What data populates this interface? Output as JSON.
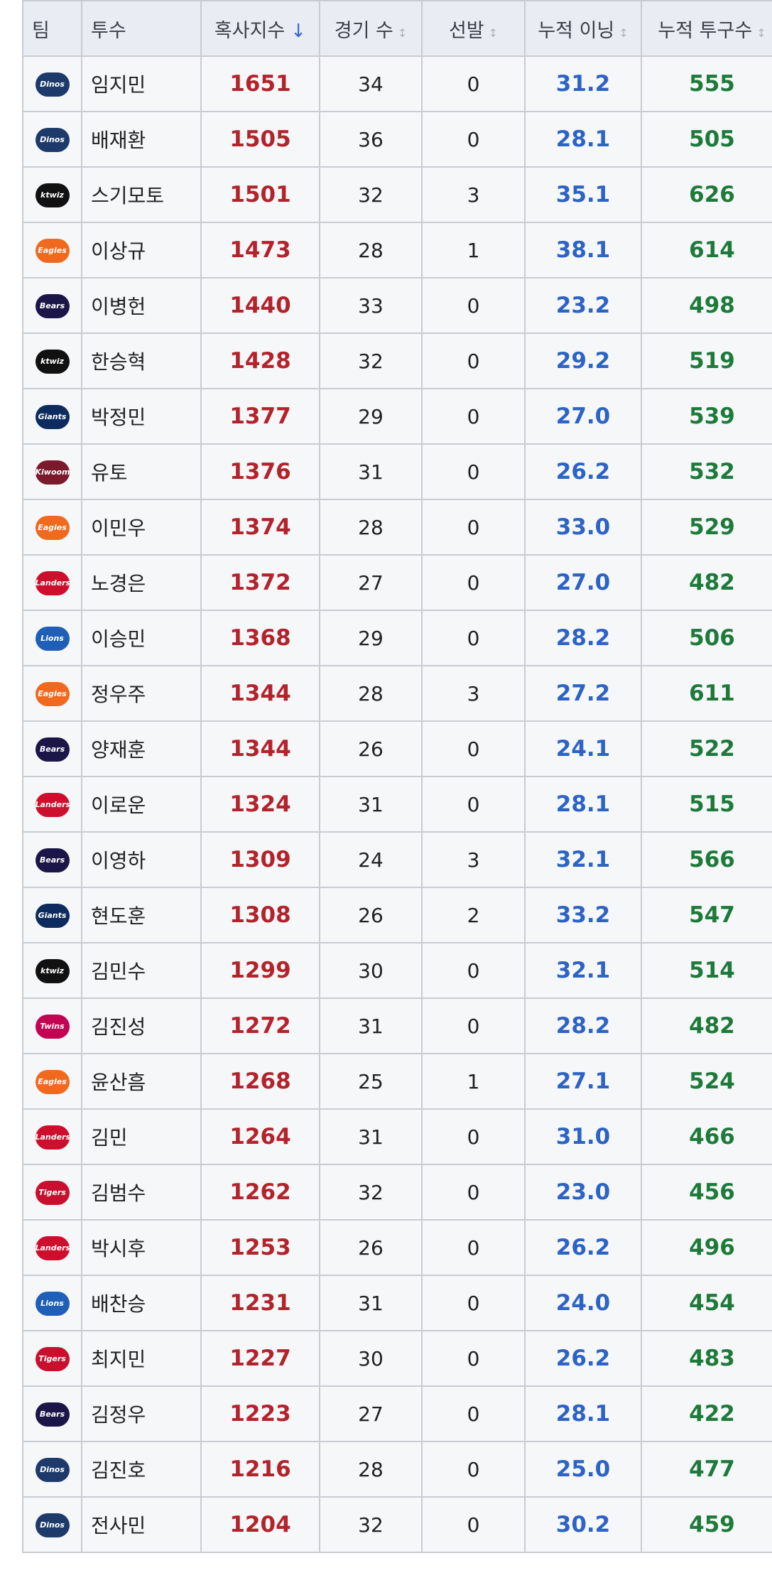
{
  "table": {
    "header": [
      "팀",
      "투수",
      "혹사지수",
      "경기 수",
      "선발",
      "누적 이닝",
      "누적 투구수"
    ],
    "rows": [
      [
        "Dinos",
        "임지민",
        1651,
        34,
        0,
        "31.2",
        555
      ],
      [
        "Dinos",
        "배재환",
        1505,
        36,
        0,
        "28.1",
        505
      ],
      [
        "ktwiz",
        "스기모토",
        1501,
        32,
        3,
        "35.1",
        626
      ],
      [
        "Eagles",
        "이상규",
        1473,
        28,
        1,
        "38.1",
        614
      ],
      [
        "Bears",
        "이병헌",
        1440,
        33,
        0,
        "23.2",
        498
      ],
      [
        "ktwiz",
        "한승혁",
        1428,
        32,
        0,
        "29.2",
        519
      ],
      [
        "Giants",
        "박정민",
        1377,
        29,
        0,
        "27.0",
        539
      ],
      [
        "Kiwoom",
        "유토",
        1376,
        31,
        0,
        "26.2",
        532
      ],
      [
        "Eagles",
        "이민우",
        1374,
        28,
        0,
        "33.0",
        529
      ],
      [
        "Landers",
        "노경은",
        1372,
        27,
        0,
        "27.0",
        482
      ],
      [
        "Lions",
        "이승민",
        1368,
        29,
        0,
        "28.2",
        506
      ],
      [
        "Eagles",
        "정우주",
        1344,
        28,
        3,
        "27.2",
        611
      ],
      [
        "Bears",
        "양재훈",
        1344,
        26,
        0,
        "24.1",
        522
      ],
      [
        "Landers",
        "이로운",
        1324,
        31,
        0,
        "28.1",
        515
      ],
      [
        "Bears",
        "이영하",
        1309,
        24,
        3,
        "32.1",
        566
      ],
      [
        "Giants",
        "현도훈",
        1308,
        26,
        2,
        "33.2",
        547
      ],
      [
        "ktwiz",
        "김민수",
        1299,
        30,
        0,
        "32.1",
        514
      ],
      [
        "Twins",
        "김진성",
        1272,
        31,
        0,
        "28.2",
        482
      ],
      [
        "Eagles",
        "윤산흠",
        1268,
        25,
        1,
        "27.1",
        524
      ],
      [
        "Landers",
        "김민",
        1264,
        31,
        0,
        "31.0",
        466
      ],
      [
        "Tigers",
        "김범수",
        1262,
        32,
        0,
        "23.0",
        456
      ],
      [
        "Landers",
        "박시후",
        1253,
        26,
        0,
        "26.2",
        496
      ],
      [
        "Lions",
        "배찬승",
        1231,
        31,
        0,
        "24.0",
        454
      ],
      [
        "Tigers",
        "최지민",
        1227,
        30,
        0,
        "26.2",
        483
      ],
      [
        "Bears",
        "김정우",
        1223,
        27,
        0,
        "28.1",
        422
      ],
      [
        "Dinos",
        "김진호",
        1216,
        28,
        0,
        "25.0",
        477
      ],
      [
        "Dinos",
        "전사민",
        1204,
        32,
        0,
        "30.2",
        459
      ]
    ]
  }
}
